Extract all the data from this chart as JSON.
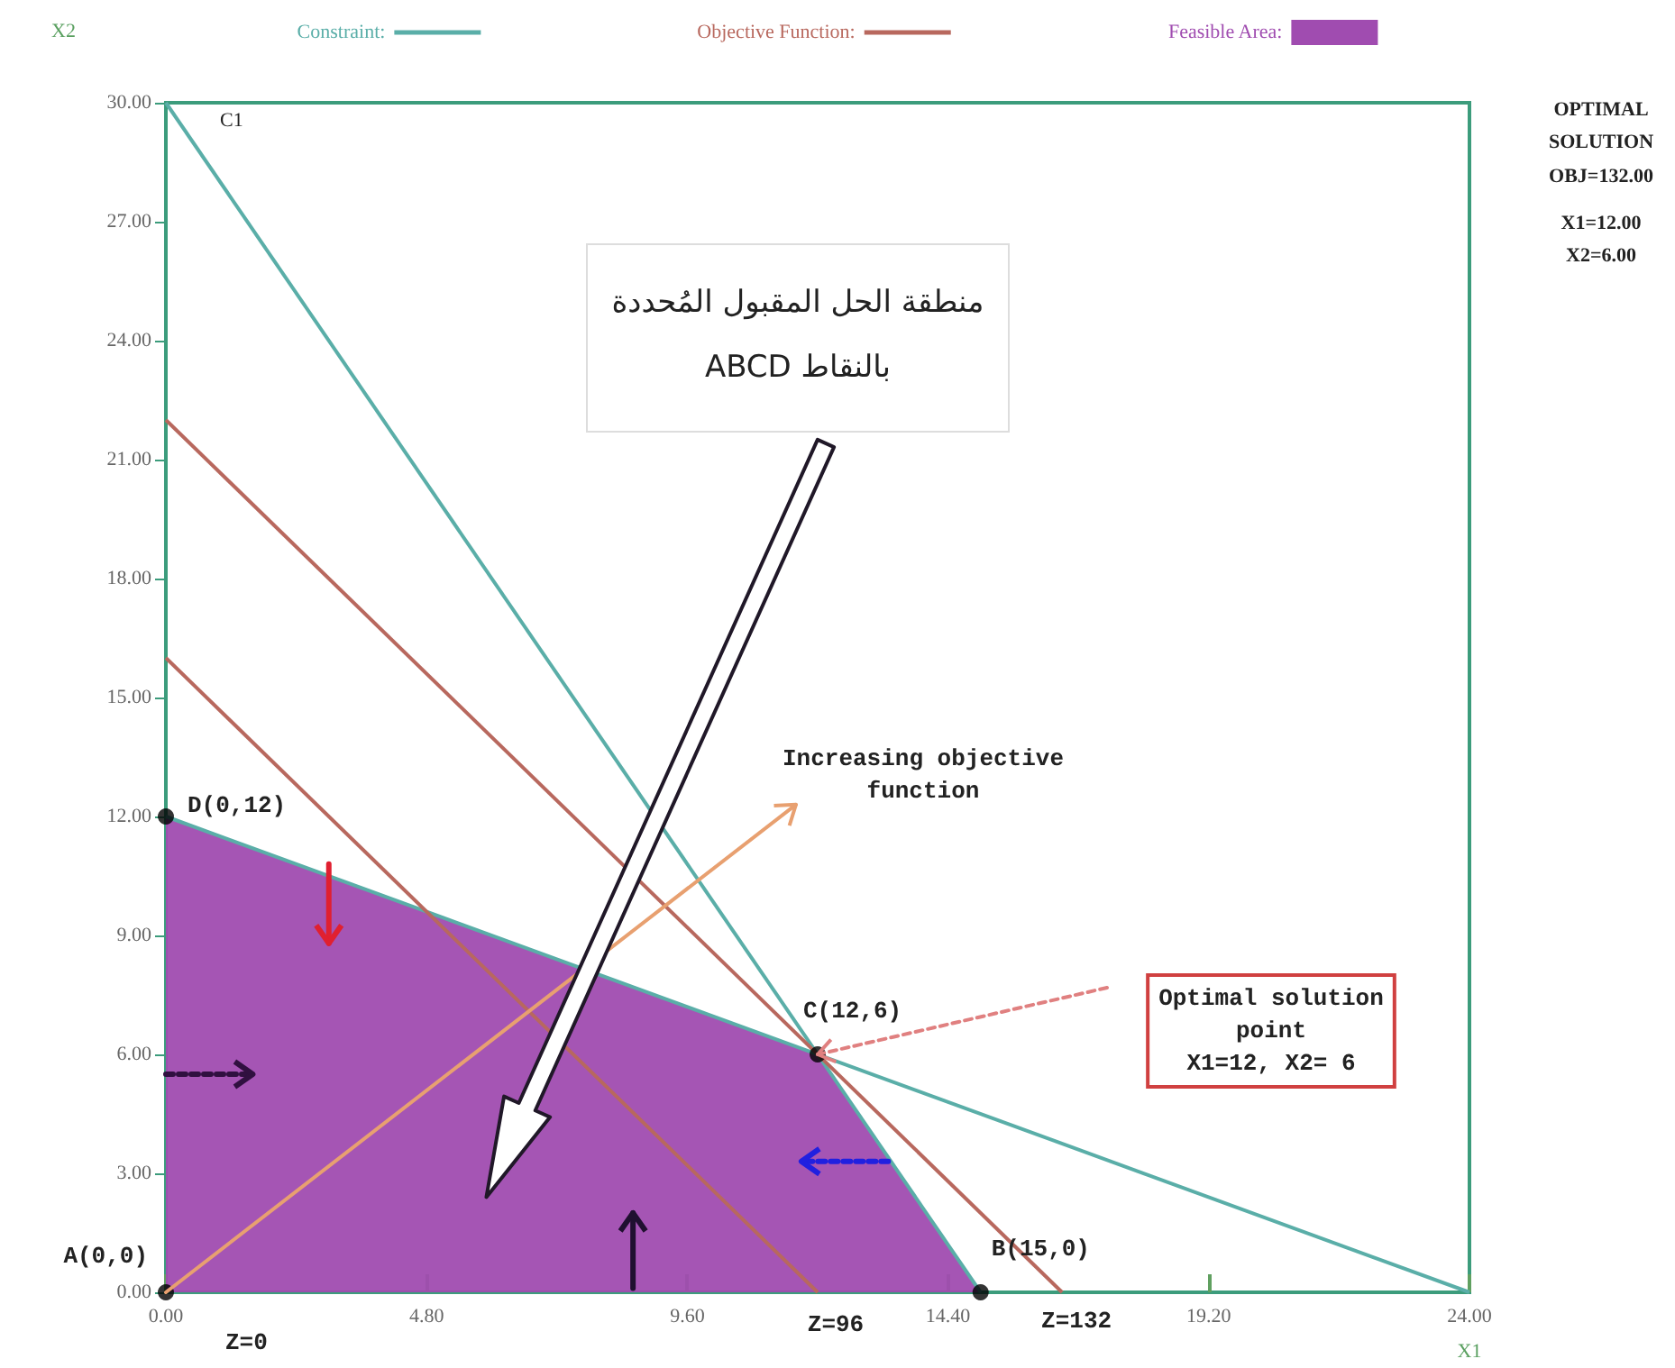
{
  "chart_data": {
    "type": "line",
    "xlabel": "X1",
    "ylabel": "X2",
    "xlim": [
      0,
      24
    ],
    "xticks": [
      {
        "value": 0,
        "label": "0.00"
      },
      {
        "value": 4.8,
        "label": "4.80"
      },
      {
        "value": 9.6,
        "label": "9.60"
      },
      {
        "value": 14.4,
        "label": "14.40"
      },
      {
        "value": 19.2,
        "label": "19.20"
      },
      {
        "value": 24,
        "label": "24.00"
      }
    ],
    "ylim": [
      0,
      30
    ],
    "yticks": [
      {
        "value": 0,
        "label": "0.00"
      },
      {
        "value": 3,
        "label": "3.00"
      },
      {
        "value": 6,
        "label": "6.00"
      },
      {
        "value": 9,
        "label": "9.00"
      },
      {
        "value": 12,
        "label": "12.00"
      },
      {
        "value": 15,
        "label": "15.00"
      },
      {
        "value": 18,
        "label": "18.00"
      },
      {
        "value": 21,
        "label": "21.00"
      },
      {
        "value": 24,
        "label": "24.00"
      },
      {
        "value": 27,
        "label": "27.00"
      },
      {
        "value": 30,
        "label": "30.00"
      }
    ],
    "grid": false,
    "legend": "top",
    "series": [
      {
        "name": "Constraint:",
        "color": "#5aaea8",
        "x": [
          0,
          15
        ],
        "values": [
          30,
          0
        ]
      },
      {
        "color": "#5aaea8",
        "x": [
          0,
          24
        ],
        "values": [
          12,
          0
        ]
      },
      {
        "name": "Objective Function:",
        "color": "#b8685e",
        "x": [
          0,
          16.5
        ],
        "values": [
          22,
          0
        ]
      },
      {
        "color": "#b8685e",
        "x": [
          0,
          12
        ],
        "values": [
          16,
          0
        ]
      },
      {
        "name": "Feasible Area:",
        "type": "area",
        "color": "#a04cb0",
        "x": [
          0,
          12,
          15
        ],
        "values": [
          12,
          6,
          0
        ]
      },
      {
        "type": "scatter",
        "color": "#000000",
        "marker": "circle",
        "x": [
          0,
          15,
          12,
          0
        ],
        "values": [
          0,
          0,
          6,
          12
        ]
      }
    ],
    "annotations": [
      {
        "text": "C1",
        "x": 0,
        "y": 30
      },
      {
        "text": "D(0,12)",
        "x": 0,
        "y": 12
      },
      {
        "text": "A(0,0)",
        "x": 0,
        "y": 0
      },
      {
        "text": "C(12,6)",
        "x": 12,
        "y": 6
      },
      {
        "text": "B(15,0)",
        "x": 15,
        "y": 0
      },
      {
        "text": "Z=0",
        "x": 0,
        "y": 0
      },
      {
        "text": "Z=96",
        "x": 12,
        "y": 0
      },
      {
        "text": "Z=132",
        "x": 16.5,
        "y": 0
      },
      "Increasing objective\nfunction",
      "منطقة الحل المقبول المُحددة\nبالنقاط ABCD",
      "Optimal solution\npoint\nX1=12, X2= 6",
      "OPTIMAL\nSOLUTION",
      "OBJ=132.00",
      "X1=12.00\nX2=6.00"
    ]
  }
}
